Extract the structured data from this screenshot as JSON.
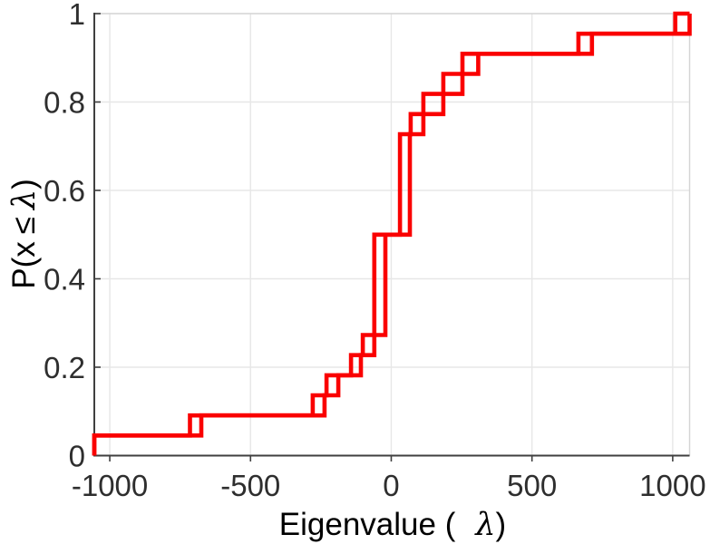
{
  "chart_data": {
    "type": "step",
    "subtype": "empirical-cdf",
    "title": "",
    "xlabel": {
      "prefix": "Eigenvalue (",
      "symbol": "λ",
      "suffix": ")"
    },
    "ylabel": {
      "prefix": "P(x",
      "leq": "≤",
      "symbol": "λ",
      "suffix": ")"
    },
    "xlim": [
      -1055,
      1060
    ],
    "ylim": [
      0,
      1
    ],
    "grid": true,
    "legend": "none",
    "x_ticks": [
      {
        "value": -1000,
        "label": "-1000"
      },
      {
        "value": -500,
        "label": "-500"
      },
      {
        "value": 0,
        "label": "0"
      },
      {
        "value": 500,
        "label": "500"
      },
      {
        "value": 1000,
        "label": "1000"
      }
    ],
    "y_ticks": [
      {
        "value": 0,
        "label": "0"
      },
      {
        "value": 0.2,
        "label": "0.2"
      },
      {
        "value": 0.4,
        "label": "0.4"
      },
      {
        "value": 0.6,
        "label": "0.6"
      },
      {
        "value": 0.8,
        "label": "0.8"
      },
      {
        "value": 1,
        "label": "1"
      }
    ],
    "series": [
      {
        "id": "cdf-a",
        "values": [
          -1055,
          -715,
          -279,
          -230,
          -143,
          -101,
          -60,
          -60,
          -60,
          -60,
          -60,
          31,
          31,
          31,
          31,
          31,
          69,
          114,
          185,
          253,
          665,
          1009
        ]
      },
      {
        "id": "cdf-b",
        "values": [
          -1055,
          -675,
          -237,
          -188,
          -108,
          -60,
          -21,
          -21,
          -21,
          -21,
          -21,
          66,
          66,
          66,
          66,
          66,
          114,
          185,
          253,
          309,
          713,
          1060
        ]
      }
    ],
    "colors": {
      "line": "#fa0000",
      "grid": "#e7e7e7",
      "axis": "#3f3f3f",
      "border_light": "#d4d4d4",
      "text": "#2e2e2e",
      "background": "#ffffff"
    }
  }
}
